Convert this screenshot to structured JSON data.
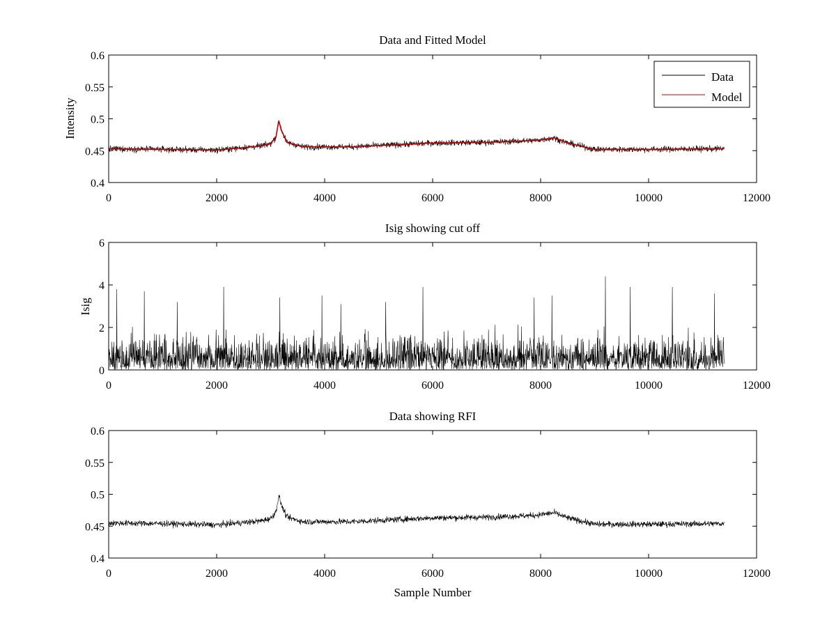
{
  "chart_data": [
    {
      "type": "line",
      "title": "Data and Fitted Model",
      "xlabel": "",
      "ylabel": "Intensity",
      "xlim": [
        0,
        12000
      ],
      "ylim": [
        0.4,
        0.6
      ],
      "x_ticks": [
        0,
        2000,
        4000,
        6000,
        8000,
        10000,
        12000
      ],
      "x_tick_labels": [
        "0",
        "2000",
        "4000",
        "6000",
        "8000",
        "10000",
        "12000"
      ],
      "y_ticks": [
        0.4,
        0.45,
        0.5,
        0.55,
        0.6
      ],
      "y_tick_labels": [
        "0.4",
        "0.45",
        "0.5",
        "0.55",
        "0.6"
      ],
      "legend": "top-right",
      "series": [
        {
          "name": "Data",
          "color": "#000000",
          "noise": 0.004,
          "x_range": [
            0,
            11400
          ],
          "baseline": [
            [
              0,
              0.453
            ],
            [
              1000,
              0.452
            ],
            [
              2000,
              0.451
            ],
            [
              2800,
              0.457
            ],
            [
              3000,
              0.461
            ],
            [
              3100,
              0.472
            ],
            [
              3150,
              0.497
            ],
            [
              3200,
              0.482
            ],
            [
              3300,
              0.463
            ],
            [
              3600,
              0.456
            ],
            [
              4500,
              0.456
            ],
            [
              6000,
              0.462
            ],
            [
              7000,
              0.463
            ],
            [
              7900,
              0.466
            ],
            [
              8250,
              0.47
            ],
            [
              8500,
              0.462
            ],
            [
              9000,
              0.452
            ],
            [
              10000,
              0.452
            ],
            [
              11400,
              0.453
            ]
          ]
        },
        {
          "name": "Model",
          "color": "#c00000",
          "x_range": [
            0,
            11400
          ],
          "baseline": [
            [
              0,
              0.453
            ],
            [
              1000,
              0.452
            ],
            [
              2000,
              0.451
            ],
            [
              2800,
              0.457
            ],
            [
              3000,
              0.461
            ],
            [
              3100,
              0.472
            ],
            [
              3150,
              0.497
            ],
            [
              3200,
              0.482
            ],
            [
              3300,
              0.463
            ],
            [
              3600,
              0.456
            ],
            [
              4500,
              0.456
            ],
            [
              6000,
              0.462
            ],
            [
              7000,
              0.463
            ],
            [
              7900,
              0.466
            ],
            [
              8250,
              0.47
            ],
            [
              8500,
              0.462
            ],
            [
              9000,
              0.452
            ],
            [
              10000,
              0.452
            ],
            [
              11400,
              0.453
            ]
          ]
        }
      ]
    },
    {
      "type": "line",
      "title": "Isig showing cut off",
      "xlabel": "",
      "ylabel": "Isig",
      "xlim": [
        0,
        12000
      ],
      "ylim": [
        0,
        6
      ],
      "x_ticks": [
        0,
        2000,
        4000,
        6000,
        8000,
        10000,
        12000
      ],
      "x_tick_labels": [
        "0",
        "2000",
        "4000",
        "6000",
        "8000",
        "10000",
        "12000"
      ],
      "y_ticks": [
        0,
        2,
        4,
        6
      ],
      "y_tick_labels": [
        "0",
        "2",
        "4",
        "6"
      ],
      "series": [
        {
          "name": "Isig",
          "color": "#000000",
          "x_range": [
            0,
            11400
          ],
          "typical_max": 2.2,
          "peaks": [
            [
              150,
              3.8
            ],
            [
              660,
              3.7
            ],
            [
              2130,
              3.9
            ],
            [
              3170,
              3.4
            ],
            [
              5820,
              3.9
            ],
            [
              9200,
              4.4
            ],
            [
              9660,
              3.9
            ],
            [
              10440,
              3.9
            ],
            [
              7880,
              3.4
            ],
            [
              5130,
              3.2
            ],
            [
              4300,
              3.1
            ],
            [
              11220,
              3.6
            ],
            [
              1270,
              3.2
            ],
            [
              3950,
              3.5
            ],
            [
              8210,
              3.5
            ]
          ]
        }
      ]
    },
    {
      "type": "line",
      "title": "Data showing RFI",
      "xlabel": "Sample Number",
      "ylabel": "",
      "xlim": [
        0,
        12000
      ],
      "ylim": [
        0.4,
        0.6
      ],
      "x_ticks": [
        0,
        2000,
        4000,
        6000,
        8000,
        10000,
        12000
      ],
      "x_tick_labels": [
        "0",
        "2000",
        "4000",
        "6000",
        "8000",
        "10000",
        "12000"
      ],
      "y_ticks": [
        0.4,
        0.45,
        0.5,
        0.55,
        0.6
      ],
      "y_tick_labels": [
        "0.4",
        "0.45",
        "0.5",
        "0.55",
        "0.6"
      ],
      "series": [
        {
          "name": "Data",
          "color": "#000000",
          "noise": 0.004,
          "x_range": [
            0,
            11400
          ],
          "baseline": [
            [
              0,
              0.455
            ],
            [
              1000,
              0.454
            ],
            [
              2000,
              0.452
            ],
            [
              2800,
              0.458
            ],
            [
              3000,
              0.462
            ],
            [
              3100,
              0.473
            ],
            [
              3150,
              0.498
            ],
            [
              3200,
              0.483
            ],
            [
              3300,
              0.464
            ],
            [
              3600,
              0.457
            ],
            [
              4500,
              0.457
            ],
            [
              6000,
              0.463
            ],
            [
              7000,
              0.464
            ],
            [
              7900,
              0.467
            ],
            [
              8250,
              0.471
            ],
            [
              8500,
              0.463
            ],
            [
              9000,
              0.453
            ],
            [
              10000,
              0.453
            ],
            [
              11400,
              0.454
            ]
          ]
        }
      ]
    }
  ]
}
